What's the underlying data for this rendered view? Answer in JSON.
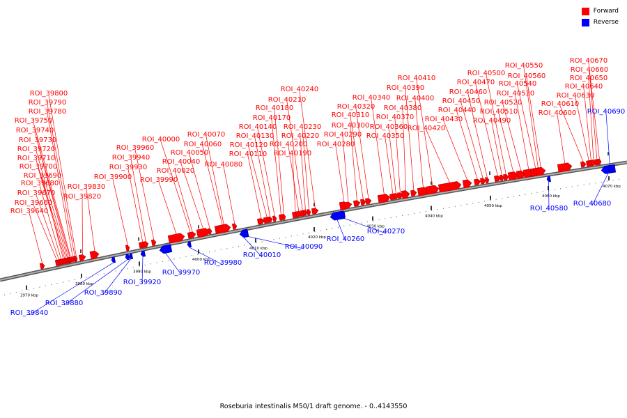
{
  "legend": {
    "forward_label": "Forward",
    "reverse_label": "Reverse",
    "forward_color": "#ff0000",
    "reverse_color": "#0000ff"
  },
  "caption": "Roseburia intestinalis M50/1 draft genome. - 0..4143550",
  "axis": {
    "color": "#777777",
    "ticks": [
      "3970 kbp",
      "3980 kbp",
      "3990 kbp",
      "4000 kbp",
      "4010 kbp",
      "4020 kbp",
      "4030 kbp",
      "4040 kbp",
      "4050 kbp",
      "4060 kbp",
      "4070 kbp"
    ]
  },
  "forward_labels": [
    "ROI_39640",
    "ROI_39660",
    "ROI_39670",
    "ROI_39680",
    "ROI_39690",
    "ROI_39700",
    "ROI_39710",
    "ROI_39720",
    "ROI_39730",
    "ROI_39740",
    "ROI_39750",
    "ROI_39780",
    "ROI_39790",
    "ROI_39800",
    "ROI_39820",
    "ROI_39830",
    "ROI_39900",
    "ROI_39930",
    "ROI_39940",
    "ROI_39960",
    "ROI_39990",
    "ROI_40000",
    "ROI_40020",
    "ROI_40040",
    "ROI_40050",
    "ROI_40060",
    "ROI_40070",
    "ROI_40080",
    "ROI_40110",
    "ROI_40120",
    "ROI_40130",
    "ROI_40140",
    "ROI_40170",
    "ROI_40180",
    "ROI_40190",
    "ROI_40200",
    "ROI_40210",
    "ROI_40220",
    "ROI_40230",
    "ROI_40240",
    "ROI_40280",
    "ROI_40290",
    "ROI_40300",
    "ROI_40310",
    "ROI_40320",
    "ROI_40340",
    "ROI_40350",
    "ROI_40360",
    "ROI_40370",
    "ROI_40380",
    "ROI_40390",
    "ROI_40400",
    "ROI_40410",
    "ROI_40420",
    "ROI_40430",
    "ROI_40440",
    "ROI_40450",
    "ROI_40460",
    "ROI_40470",
    "ROI_40490",
    "ROI_40500",
    "ROI_40510",
    "ROI_40520",
    "ROI_40530",
    "ROI_40540",
    "ROI_40550",
    "ROI_40560",
    "ROI_40600",
    "ROI_40610",
    "ROI_40630",
    "ROI_40640",
    "ROI_40650",
    "ROI_40660",
    "ROI_40670"
  ],
  "reverse_labels": [
    "ROI_39840",
    "ROI_39880",
    "ROI_39890",
    "ROI_39920",
    "ROI_39970",
    "ROI_39980",
    "ROI_40010",
    "ROI_40090",
    "ROI_40260",
    "ROI_40270",
    "ROI_40580",
    "ROI_40680",
    "ROI_40690"
  ]
}
